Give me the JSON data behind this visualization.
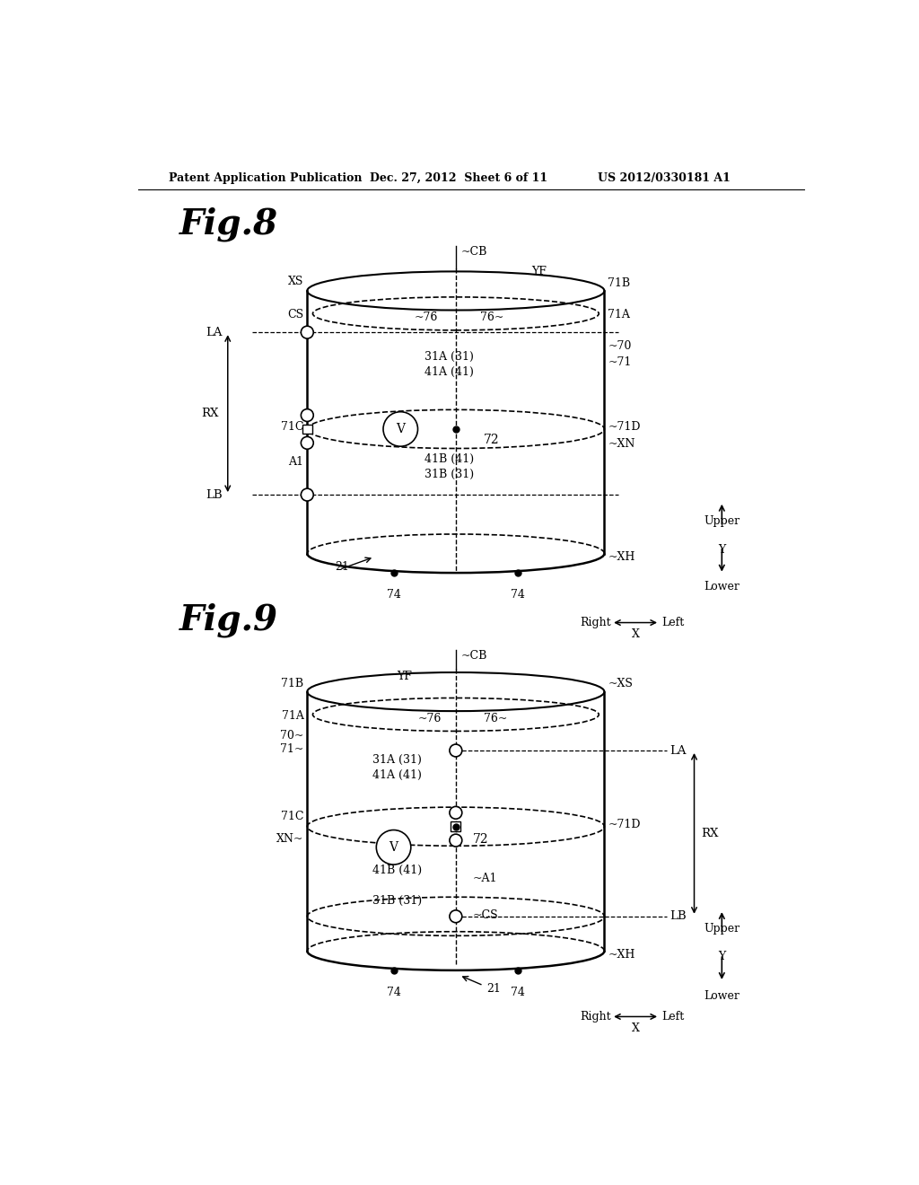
{
  "header_left": "Patent Application Publication",
  "header_mid": "Dec. 27, 2012  Sheet 6 of 11",
  "header_right": "US 2012/0330181 A1",
  "fig8_title": "Fig.8",
  "fig9_title": "Fig.9",
  "bg_color": "#ffffff",
  "line_color": "#000000"
}
